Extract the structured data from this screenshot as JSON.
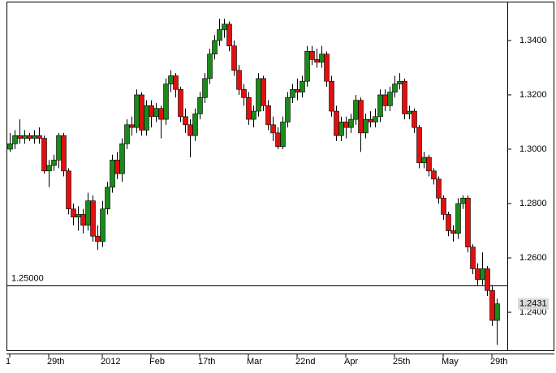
{
  "chart_data": {
    "type": "candlestick",
    "categories": [
      "1",
      null,
      null,
      null,
      null,
      null,
      null,
      null,
      "29th",
      null,
      null,
      null,
      null,
      null,
      null,
      null,
      null,
      null,
      null,
      "2012",
      null,
      null,
      null,
      null,
      null,
      null,
      null,
      null,
      null,
      "Feb",
      null,
      null,
      null,
      null,
      null,
      null,
      null,
      null,
      null,
      "17th",
      null,
      null,
      null,
      null,
      null,
      null,
      null,
      null,
      null,
      "Mar",
      null,
      null,
      null,
      null,
      null,
      null,
      null,
      null,
      null,
      "22nd",
      null,
      null,
      null,
      null,
      null,
      null,
      null,
      null,
      null,
      "Apr",
      null,
      null,
      null,
      null,
      null,
      null,
      null,
      null,
      null,
      "25th",
      null,
      null,
      null,
      null,
      null,
      null,
      null,
      null,
      null,
      "May",
      null,
      null,
      null,
      null,
      null,
      null,
      null,
      null,
      null,
      "29th",
      null
    ],
    "ohlc": [
      [
        1.3,
        1.306,
        1.299,
        1.302
      ],
      [
        1.302,
        1.307,
        1.3,
        1.305
      ],
      [
        1.305,
        1.311,
        1.302,
        1.304
      ],
      [
        1.304,
        1.307,
        1.302,
        1.305
      ],
      [
        1.305,
        1.306,
        1.303,
        1.304
      ],
      [
        1.304,
        1.307,
        1.302,
        1.305
      ],
      [
        1.305,
        1.308,
        1.302,
        1.304
      ],
      [
        1.304,
        1.305,
        1.291,
        1.292
      ],
      [
        1.292,
        1.296,
        1.286,
        1.294
      ],
      [
        1.294,
        1.298,
        1.292,
        1.296
      ],
      [
        1.296,
        1.306,
        1.293,
        1.305
      ],
      [
        1.305,
        1.306,
        1.29,
        1.292
      ],
      [
        1.292,
        1.293,
        1.276,
        1.278
      ],
      [
        1.278,
        1.28,
        1.272,
        1.275
      ],
      [
        1.275,
        1.279,
        1.27,
        1.276
      ],
      [
        1.276,
        1.278,
        1.269,
        1.272
      ],
      [
        1.272,
        1.284,
        1.27,
        1.281
      ],
      [
        1.281,
        1.283,
        1.266,
        1.268
      ],
      [
        1.268,
        1.272,
        1.263,
        1.266
      ],
      [
        1.266,
        1.281,
        1.264,
        1.278
      ],
      [
        1.278,
        1.288,
        1.276,
        1.286
      ],
      [
        1.286,
        1.298,
        1.284,
        1.296
      ],
      [
        1.296,
        1.299,
        1.289,
        1.291
      ],
      [
        1.291,
        1.304,
        1.288,
        1.302
      ],
      [
        1.302,
        1.311,
        1.3,
        1.309
      ],
      [
        1.309,
        1.312,
        1.305,
        1.308
      ],
      [
        1.308,
        1.322,
        1.306,
        1.32
      ],
      [
        1.32,
        1.321,
        1.305,
        1.307
      ],
      [
        1.307,
        1.318,
        1.305,
        1.316
      ],
      [
        1.316,
        1.318,
        1.308,
        1.312
      ],
      [
        1.312,
        1.317,
        1.31,
        1.315
      ],
      [
        1.315,
        1.316,
        1.304,
        1.311
      ],
      [
        1.311,
        1.326,
        1.309,
        1.324
      ],
      [
        1.324,
        1.329,
        1.321,
        1.327
      ],
      [
        1.327,
        1.328,
        1.319,
        1.322
      ],
      [
        1.322,
        1.323,
        1.31,
        1.312
      ],
      [
        1.312,
        1.315,
        1.306,
        1.309
      ],
      [
        1.309,
        1.311,
        1.297,
        1.305
      ],
      [
        1.305,
        1.315,
        1.303,
        1.313
      ],
      [
        1.313,
        1.321,
        1.311,
        1.319
      ],
      [
        1.319,
        1.328,
        1.317,
        1.326
      ],
      [
        1.326,
        1.337,
        1.324,
        1.335
      ],
      [
        1.335,
        1.342,
        1.333,
        1.34
      ],
      [
        1.34,
        1.348,
        1.338,
        1.344
      ],
      [
        1.344,
        1.348,
        1.341,
        1.346
      ],
      [
        1.346,
        1.347,
        1.336,
        1.338
      ],
      [
        1.338,
        1.34,
        1.327,
        1.329
      ],
      [
        1.329,
        1.331,
        1.32,
        1.322
      ],
      [
        1.322,
        1.324,
        1.316,
        1.319
      ],
      [
        1.319,
        1.321,
        1.309,
        1.311
      ],
      [
        1.311,
        1.316,
        1.308,
        1.314
      ],
      [
        1.314,
        1.328,
        1.312,
        1.326
      ],
      [
        1.326,
        1.327,
        1.314,
        1.316
      ],
      [
        1.316,
        1.318,
        1.307,
        1.309
      ],
      [
        1.309,
        1.312,
        1.303,
        1.306
      ],
      [
        1.306,
        1.308,
        1.3,
        1.301
      ],
      [
        1.301,
        1.312,
        1.3,
        1.31
      ],
      [
        1.31,
        1.321,
        1.308,
        1.319
      ],
      [
        1.319,
        1.324,
        1.317,
        1.322
      ],
      [
        1.322,
        1.326,
        1.318,
        1.321
      ],
      [
        1.321,
        1.327,
        1.319,
        1.325
      ],
      [
        1.325,
        1.338,
        1.323,
        1.336
      ],
      [
        1.336,
        1.338,
        1.331,
        1.333
      ],
      [
        1.333,
        1.337,
        1.33,
        1.332
      ],
      [
        1.332,
        1.338,
        1.33,
        1.335
      ],
      [
        1.335,
        1.336,
        1.323,
        1.325
      ],
      [
        1.325,
        1.327,
        1.312,
        1.314
      ],
      [
        1.314,
        1.316,
        1.303,
        1.305
      ],
      [
        1.305,
        1.312,
        1.303,
        1.31
      ],
      [
        1.31,
        1.312,
        1.304,
        1.308
      ],
      [
        1.308,
        1.313,
        1.306,
        1.311
      ],
      [
        1.311,
        1.32,
        1.309,
        1.318
      ],
      [
        1.318,
        1.319,
        1.299,
        1.306
      ],
      [
        1.306,
        1.313,
        1.304,
        1.311
      ],
      [
        1.311,
        1.314,
        1.308,
        1.31
      ],
      [
        1.31,
        1.315,
        1.308,
        1.312
      ],
      [
        1.312,
        1.322,
        1.31,
        1.32
      ],
      [
        1.32,
        1.322,
        1.314,
        1.316
      ],
      [
        1.316,
        1.323,
        1.314,
        1.321
      ],
      [
        1.321,
        1.327,
        1.319,
        1.324
      ],
      [
        1.324,
        1.328,
        1.322,
        1.325
      ],
      [
        1.325,
        1.326,
        1.311,
        1.313
      ],
      [
        1.313,
        1.316,
        1.311,
        1.314
      ],
      [
        1.314,
        1.315,
        1.306,
        1.308
      ],
      [
        1.308,
        1.309,
        1.293,
        1.295
      ],
      [
        1.295,
        1.299,
        1.293,
        1.297
      ],
      [
        1.297,
        1.298,
        1.29,
        1.292
      ],
      [
        1.292,
        1.293,
        1.287,
        1.289
      ],
      [
        1.289,
        1.29,
        1.28,
        1.282
      ],
      [
        1.282,
        1.283,
        1.274,
        1.276
      ],
      [
        1.276,
        1.277,
        1.268,
        1.27
      ],
      [
        1.27,
        1.272,
        1.266,
        1.269
      ],
      [
        1.269,
        1.282,
        1.267,
        1.28
      ],
      [
        1.28,
        1.283,
        1.278,
        1.282
      ],
      [
        1.282,
        1.283,
        1.262,
        1.264
      ],
      [
        1.264,
        1.265,
        1.254,
        1.256
      ],
      [
        1.256,
        1.258,
        1.25,
        1.252
      ],
      [
        1.252,
        1.262,
        1.25,
        1.256
      ],
      [
        1.256,
        1.257,
        1.246,
        1.248
      ],
      [
        1.248,
        1.25,
        1.235,
        1.237
      ],
      [
        1.237,
        1.245,
        1.228,
        1.2431
      ]
    ],
    "up_color": "#1a8a1a",
    "down_color": "#e01010",
    "ylim": [
      1.226,
      1.3543
    ],
    "yticks": [
      {
        "value": 1.24,
        "label": "1.2400"
      },
      {
        "value": 1.26,
        "label": "1.2600"
      },
      {
        "value": 1.28,
        "label": "1.2800"
      },
      {
        "value": 1.3,
        "label": "1.3000"
      },
      {
        "value": 1.32,
        "label": "1.3200"
      },
      {
        "value": 1.34,
        "label": "1.3400"
      }
    ],
    "hline": {
      "value": 1.25,
      "label": "1.25000"
    },
    "grid": false
  }
}
